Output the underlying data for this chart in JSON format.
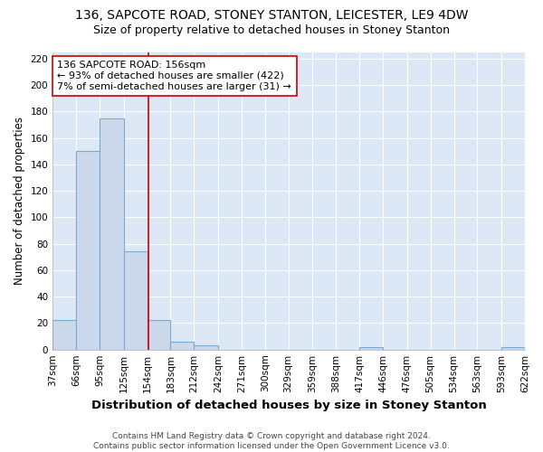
{
  "title1": "136, SAPCOTE ROAD, STONEY STANTON, LEICESTER, LE9 4DW",
  "title2": "Size of property relative to detached houses in Stoney Stanton",
  "xlabel": "Distribution of detached houses by size in Stoney Stanton",
  "ylabel": "Number of detached properties",
  "footnote": "Contains HM Land Registry data © Crown copyright and database right 2024.\nContains public sector information licensed under the Open Government Licence v3.0.",
  "bin_edges": [
    37,
    66,
    95,
    125,
    154,
    183,
    212,
    242,
    271,
    300,
    329,
    359,
    388,
    417,
    446,
    476,
    505,
    534,
    563,
    593,
    622
  ],
  "bar_heights": [
    22,
    150,
    175,
    74,
    22,
    6,
    3,
    0,
    0,
    0,
    0,
    0,
    0,
    2,
    0,
    0,
    0,
    0,
    0,
    2
  ],
  "bar_color": "#ccd9ed",
  "bar_edge_color": "#7aaad0",
  "property_size": 156,
  "vline_color": "#cc0000",
  "annotation_text": "136 SAPCOTE ROAD: 156sqm\n← 93% of detached houses are smaller (422)\n7% of semi-detached houses are larger (31) →",
  "annotation_box_color": "#ffffff",
  "annotation_box_edge_color": "#cc0000",
  "ylim": [
    0,
    225
  ],
  "yticks": [
    0,
    20,
    40,
    60,
    80,
    100,
    120,
    140,
    160,
    180,
    200,
    220
  ],
  "fig_bg_color": "#ffffff",
  "plot_bg_color": "#dce8f5",
  "grid_color": "#ffffff",
  "title1_fontsize": 10,
  "title2_fontsize": 9,
  "xlabel_fontsize": 9.5,
  "ylabel_fontsize": 8.5,
  "tick_fontsize": 7.5,
  "annotation_fontsize": 8,
  "footnote_fontsize": 6.5
}
